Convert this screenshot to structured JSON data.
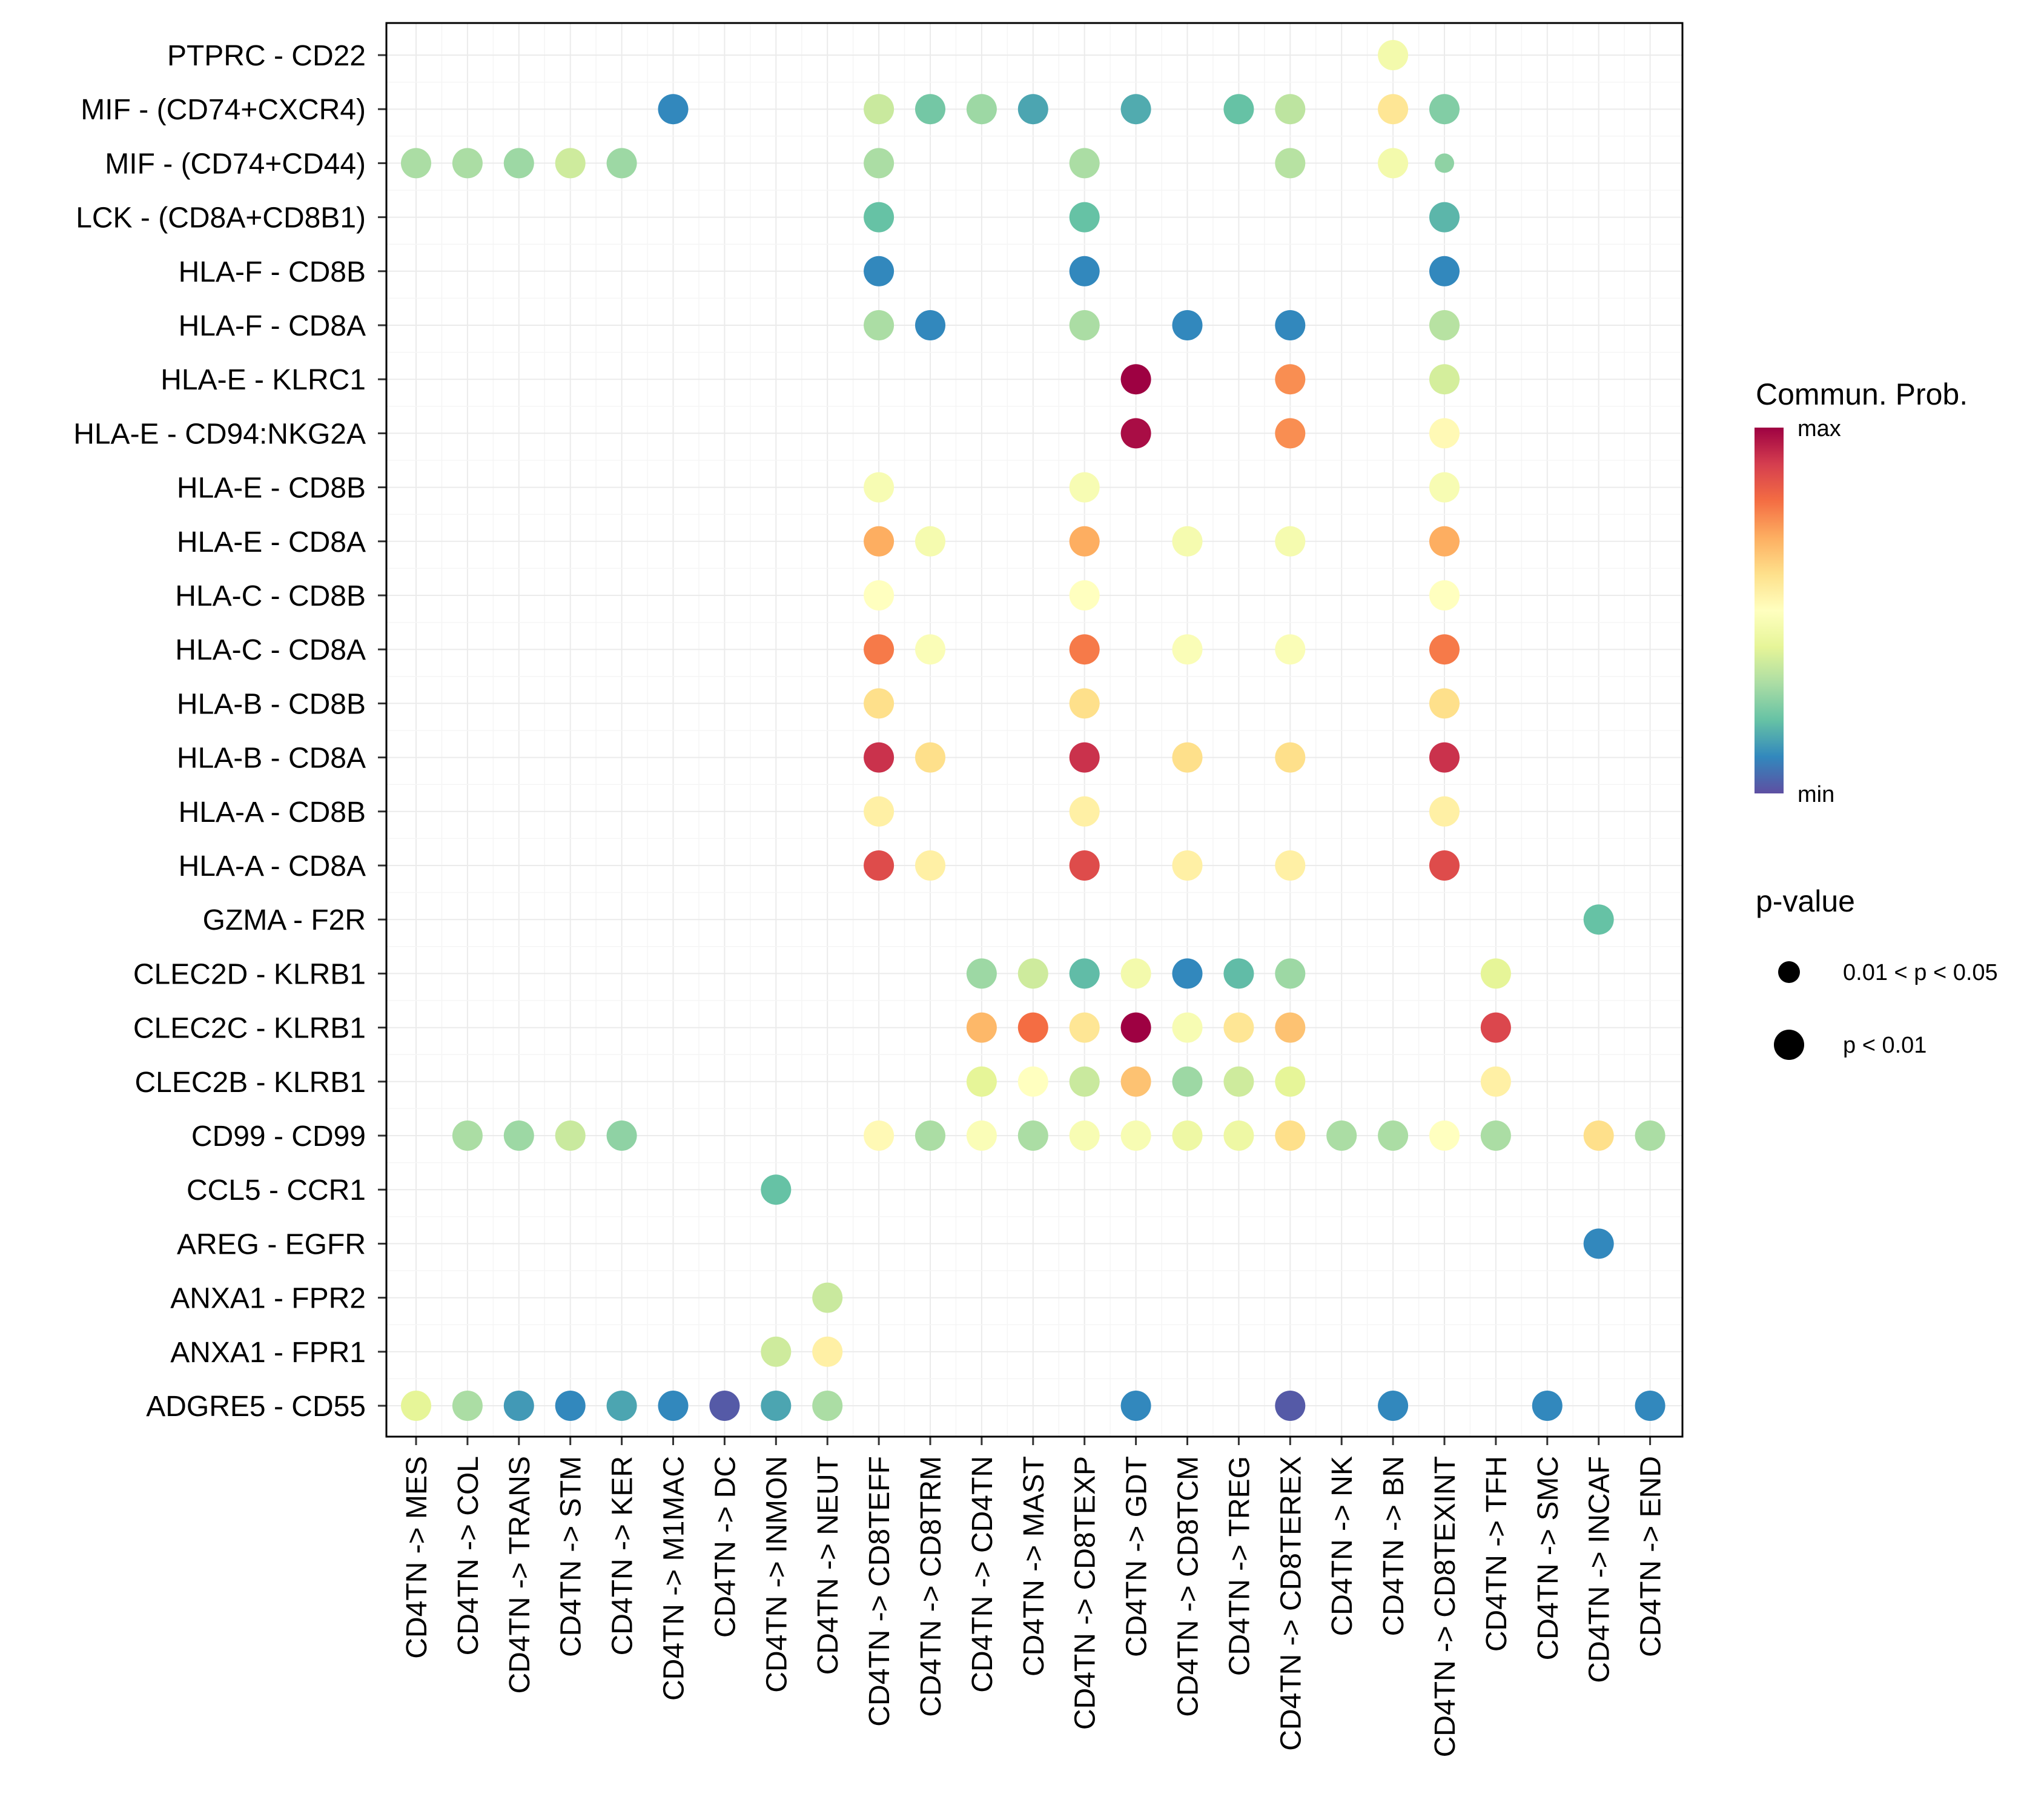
{
  "chart_data": {
    "type": "scatter",
    "subtype": "dot-plot",
    "title": "",
    "xlabel": "",
    "ylabel": "",
    "grid": true,
    "legend_position": "right",
    "x_categories": [
      "CD4TN -> MES",
      "CD4TN -> COL",
      "CD4TN -> TRANS",
      "CD4TN -> STM",
      "CD4TN -> KER",
      "CD4TN -> M1MAC",
      "CD4TN -> DC",
      "CD4TN -> INMON",
      "CD4TN -> NEUT",
      "CD4TN -> CD8TEFF",
      "CD4TN -> CD8TRM",
      "CD4TN -> CD4TN",
      "CD4TN -> MAST",
      "CD4TN -> CD8TEXP",
      "CD4TN -> GDT",
      "CD4TN -> CD8TCM",
      "CD4TN -> TREG",
      "CD4TN -> CD8TEREX",
      "CD4TN -> NK",
      "CD4TN -> BN",
      "CD4TN -> CD8TEXINT",
      "CD4TN -> TFH",
      "CD4TN -> SMC",
      "CD4TN -> INCAF",
      "CD4TN -> END"
    ],
    "y_categories": [
      "PTPRC - CD22",
      "MIF - (CD74+CXCR4)",
      "MIF - (CD74+CD44)",
      "LCK - (CD8A+CD8B1)",
      "HLA-F - CD8B",
      "HLA-F - CD8A",
      "HLA-E - KLRC1",
      "HLA-E - CD94:NKG2A",
      "HLA-E - CD8B",
      "HLA-E - CD8A",
      "HLA-C - CD8B",
      "HLA-C - CD8A",
      "HLA-B - CD8B",
      "HLA-B - CD8A",
      "HLA-A - CD8B",
      "HLA-A - CD8A",
      "GZMA - F2R",
      "CLEC2D - KLRB1",
      "CLEC2C - KLRB1",
      "CLEC2B - KLRB1",
      "CD99 - CD99",
      "CCL5 - CCR1",
      "AREG - EGFR",
      "ANXA1 - FPR2",
      "ANXA1 - FPR1",
      "ADGRE5 - CD55"
    ],
    "points_note": "each point: [x index, y index, communication probability scaled 0 (min) .. 1 (max), p-value class: 1 = 'p < 0.01', 0 = '0.01 < p < 0.05']",
    "points": [
      [
        19,
        0,
        0.45,
        1
      ],
      [
        5,
        1,
        0.1,
        1
      ],
      [
        9,
        1,
        0.35,
        1
      ],
      [
        10,
        1,
        0.22,
        1
      ],
      [
        11,
        1,
        0.28,
        1
      ],
      [
        12,
        1,
        0.15,
        1
      ],
      [
        14,
        1,
        0.16,
        1
      ],
      [
        16,
        1,
        0.2,
        1
      ],
      [
        17,
        1,
        0.33,
        1
      ],
      [
        19,
        1,
        0.58,
        1
      ],
      [
        20,
        1,
        0.24,
        1
      ],
      [
        0,
        2,
        0.3,
        1
      ],
      [
        1,
        2,
        0.3,
        1
      ],
      [
        2,
        2,
        0.28,
        1
      ],
      [
        3,
        2,
        0.36,
        1
      ],
      [
        4,
        2,
        0.28,
        1
      ],
      [
        9,
        2,
        0.3,
        1
      ],
      [
        13,
        2,
        0.3,
        1
      ],
      [
        17,
        2,
        0.32,
        1
      ],
      [
        19,
        2,
        0.45,
        1
      ],
      [
        20,
        2,
        0.26,
        0
      ],
      [
        9,
        3,
        0.2,
        1
      ],
      [
        13,
        3,
        0.2,
        1
      ],
      [
        20,
        3,
        0.18,
        1
      ],
      [
        9,
        4,
        0.1,
        1
      ],
      [
        13,
        4,
        0.1,
        1
      ],
      [
        20,
        4,
        0.1,
        1
      ],
      [
        9,
        5,
        0.3,
        1
      ],
      [
        10,
        5,
        0.1,
        1
      ],
      [
        13,
        5,
        0.3,
        1
      ],
      [
        15,
        5,
        0.1,
        1
      ],
      [
        17,
        5,
        0.1,
        1
      ],
      [
        20,
        5,
        0.32,
        1
      ],
      [
        14,
        6,
        1.0,
        1
      ],
      [
        17,
        6,
        0.75,
        1
      ],
      [
        20,
        6,
        0.37,
        1
      ],
      [
        14,
        7,
        0.98,
        1
      ],
      [
        17,
        7,
        0.75,
        1
      ],
      [
        20,
        7,
        0.52,
        1
      ],
      [
        9,
        8,
        0.47,
        1
      ],
      [
        13,
        8,
        0.47,
        1
      ],
      [
        20,
        8,
        0.47,
        1
      ],
      [
        9,
        9,
        0.7,
        1
      ],
      [
        10,
        9,
        0.46,
        1
      ],
      [
        13,
        9,
        0.7,
        1
      ],
      [
        15,
        9,
        0.46,
        1
      ],
      [
        17,
        9,
        0.46,
        1
      ],
      [
        20,
        9,
        0.7,
        1
      ],
      [
        9,
        10,
        0.5,
        1
      ],
      [
        13,
        10,
        0.5,
        1
      ],
      [
        20,
        10,
        0.5,
        1
      ],
      [
        9,
        11,
        0.78,
        1
      ],
      [
        10,
        11,
        0.48,
        1
      ],
      [
        13,
        11,
        0.78,
        1
      ],
      [
        15,
        11,
        0.48,
        1
      ],
      [
        17,
        11,
        0.48,
        1
      ],
      [
        20,
        11,
        0.78,
        1
      ],
      [
        9,
        12,
        0.6,
        1
      ],
      [
        13,
        12,
        0.6,
        1
      ],
      [
        20,
        12,
        0.6,
        1
      ],
      [
        9,
        13,
        0.92,
        1
      ],
      [
        10,
        13,
        0.6,
        1
      ],
      [
        13,
        13,
        0.92,
        1
      ],
      [
        15,
        13,
        0.6,
        1
      ],
      [
        17,
        13,
        0.6,
        1
      ],
      [
        20,
        13,
        0.92,
        1
      ],
      [
        9,
        14,
        0.55,
        1
      ],
      [
        13,
        14,
        0.55,
        1
      ],
      [
        20,
        14,
        0.55,
        1
      ],
      [
        9,
        15,
        0.87,
        1
      ],
      [
        10,
        15,
        0.55,
        1
      ],
      [
        13,
        15,
        0.87,
        1
      ],
      [
        15,
        15,
        0.55,
        1
      ],
      [
        17,
        15,
        0.55,
        1
      ],
      [
        20,
        15,
        0.87,
        1
      ],
      [
        23,
        16,
        0.2,
        1
      ],
      [
        11,
        17,
        0.28,
        1
      ],
      [
        12,
        17,
        0.36,
        1
      ],
      [
        13,
        17,
        0.19,
        1
      ],
      [
        14,
        17,
        0.45,
        1
      ],
      [
        15,
        17,
        0.1,
        1
      ],
      [
        16,
        17,
        0.19,
        1
      ],
      [
        17,
        17,
        0.28,
        1
      ],
      [
        21,
        17,
        0.4,
        1
      ],
      [
        11,
        18,
        0.68,
        1
      ],
      [
        12,
        18,
        0.8,
        1
      ],
      [
        13,
        18,
        0.58,
        1
      ],
      [
        14,
        18,
        1.0,
        1
      ],
      [
        15,
        18,
        0.47,
        1
      ],
      [
        16,
        18,
        0.58,
        1
      ],
      [
        17,
        18,
        0.66,
        1
      ],
      [
        21,
        18,
        0.88,
        1
      ],
      [
        11,
        19,
        0.4,
        1
      ],
      [
        12,
        19,
        0.5,
        1
      ],
      [
        13,
        19,
        0.35,
        1
      ],
      [
        14,
        19,
        0.66,
        1
      ],
      [
        15,
        19,
        0.28,
        1
      ],
      [
        16,
        19,
        0.36,
        1
      ],
      [
        17,
        19,
        0.4,
        1
      ],
      [
        21,
        19,
        0.55,
        1
      ],
      [
        1,
        20,
        0.3,
        1
      ],
      [
        2,
        20,
        0.28,
        1
      ],
      [
        3,
        20,
        0.35,
        1
      ],
      [
        4,
        20,
        0.26,
        1
      ],
      [
        9,
        20,
        0.52,
        1
      ],
      [
        10,
        20,
        0.3,
        1
      ],
      [
        11,
        20,
        0.48,
        1
      ],
      [
        12,
        20,
        0.3,
        1
      ],
      [
        13,
        20,
        0.47,
        1
      ],
      [
        14,
        20,
        0.47,
        1
      ],
      [
        15,
        20,
        0.43,
        1
      ],
      [
        16,
        20,
        0.43,
        1
      ],
      [
        17,
        20,
        0.6,
        1
      ],
      [
        18,
        20,
        0.3,
        1
      ],
      [
        19,
        20,
        0.3,
        1
      ],
      [
        20,
        20,
        0.5,
        1
      ],
      [
        21,
        20,
        0.3,
        1
      ],
      [
        23,
        20,
        0.6,
        1
      ],
      [
        24,
        20,
        0.3,
        1
      ],
      [
        7,
        21,
        0.2,
        1
      ],
      [
        23,
        22,
        0.1,
        1
      ],
      [
        8,
        23,
        0.35,
        1
      ],
      [
        7,
        24,
        0.36,
        1
      ],
      [
        8,
        24,
        0.55,
        1
      ],
      [
        0,
        25,
        0.4,
        1
      ],
      [
        1,
        25,
        0.3,
        1
      ],
      [
        2,
        25,
        0.13,
        1
      ],
      [
        3,
        25,
        0.1,
        1
      ],
      [
        4,
        25,
        0.15,
        1
      ],
      [
        5,
        25,
        0.1,
        1
      ],
      [
        6,
        25,
        0.02,
        1
      ],
      [
        7,
        25,
        0.15,
        1
      ],
      [
        8,
        25,
        0.3,
        1
      ],
      [
        14,
        25,
        0.1,
        1
      ],
      [
        17,
        25,
        0.02,
        1
      ],
      [
        19,
        25,
        0.1,
        1
      ],
      [
        22,
        25,
        0.1,
        1
      ],
      [
        24,
        25,
        0.1,
        1
      ]
    ],
    "color_legend": {
      "title": "Commun. Prob.",
      "max_label": "max",
      "min_label": "min",
      "palette": [
        "#5e4fa2",
        "#3288bd",
        "#66c2a5",
        "#abdda4",
        "#e6f598",
        "#ffffbf",
        "#fee08b",
        "#fdae61",
        "#f46d43",
        "#d53e4f",
        "#9e0142"
      ]
    },
    "size_legend": {
      "title": "p-value",
      "items": [
        "0.01 < p < 0.05",
        "p < 0.01"
      ]
    }
  }
}
